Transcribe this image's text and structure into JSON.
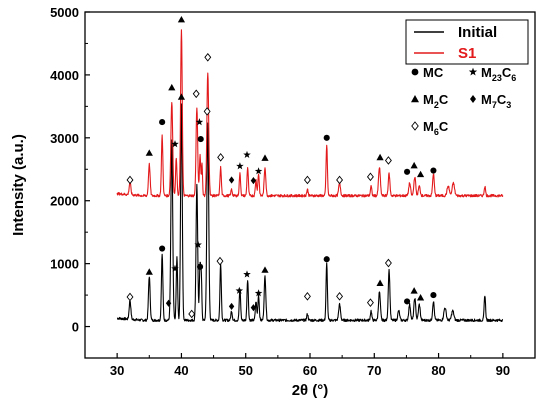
{
  "chart_data": {
    "type": "line",
    "xlabel": "2θ (°)",
    "ylabel": "Intensity (a.u.)",
    "xlim": [
      25,
      95
    ],
    "ylim": [
      -500,
      5000
    ],
    "xticks": [
      30,
      40,
      50,
      60,
      70,
      80,
      90
    ],
    "yticks": [
      0,
      1000,
      2000,
      3000,
      4000,
      5000
    ],
    "legend_position": "top-right",
    "series": [
      {
        "name": "Initial",
        "color": "#000000",
        "baseline": 100,
        "peaks": [
          [
            32.0,
            300,
            0.18
          ],
          [
            35.0,
            700,
            0.18
          ],
          [
            37.0,
            1050,
            0.16
          ],
          [
            38.5,
            2850,
            0.2
          ],
          [
            39.3,
            1000,
            0.15
          ],
          [
            40.0,
            3450,
            0.18
          ],
          [
            42.4,
            2150,
            0.18
          ],
          [
            42.9,
            900,
            0.15
          ],
          [
            43.1,
            600,
            0.12
          ],
          [
            44.1,
            3150,
            0.2
          ],
          [
            46.1,
            900,
            0.15
          ],
          [
            47.8,
            150,
            0.15
          ],
          [
            49.1,
            500,
            0.15
          ],
          [
            50.3,
            650,
            0.15
          ],
          [
            51.6,
            300,
            0.15
          ],
          [
            52.0,
            400,
            0.15
          ],
          [
            53.0,
            700,
            0.18
          ],
          [
            59.6,
            100,
            0.15
          ],
          [
            62.6,
            900,
            0.15
          ],
          [
            64.6,
            250,
            0.2
          ],
          [
            69.5,
            150,
            0.15
          ],
          [
            70.8,
            450,
            0.2
          ],
          [
            72.3,
            800,
            0.18
          ],
          [
            73.8,
            150,
            0.2
          ],
          [
            75.5,
            250,
            0.2
          ],
          [
            76.3,
            350,
            0.2
          ],
          [
            77.0,
            250,
            0.2
          ],
          [
            79.2,
            300,
            0.18
          ],
          [
            81.0,
            200,
            0.25
          ],
          [
            82.2,
            150,
            0.25
          ],
          [
            87.2,
            400,
            0.15
          ]
        ]
      },
      {
        "name": "S1",
        "color": "#e31a1c",
        "baseline": 2080,
        "peaks": [
          [
            32.0,
            200,
            0.18
          ],
          [
            35.0,
            500,
            0.18
          ],
          [
            37.0,
            950,
            0.16
          ],
          [
            38.5,
            1500,
            0.2
          ],
          [
            39.2,
            600,
            0.15
          ],
          [
            40.0,
            2650,
            0.18
          ],
          [
            42.4,
            1400,
            0.18
          ],
          [
            42.9,
            650,
            0.15
          ],
          [
            43.2,
            500,
            0.12
          ],
          [
            44.1,
            1950,
            0.2
          ],
          [
            46.1,
            450,
            0.15
          ],
          [
            47.8,
            100,
            0.15
          ],
          [
            49.1,
            350,
            0.15
          ],
          [
            50.3,
            450,
            0.15
          ],
          [
            51.6,
            250,
            0.15
          ],
          [
            52.0,
            350,
            0.15
          ],
          [
            53.0,
            450,
            0.18
          ],
          [
            59.6,
            100,
            0.15
          ],
          [
            62.6,
            800,
            0.15
          ],
          [
            64.6,
            200,
            0.2
          ],
          [
            69.5,
            150,
            0.15
          ],
          [
            70.8,
            450,
            0.2
          ],
          [
            72.3,
            350,
            0.18
          ],
          [
            75.5,
            200,
            0.2
          ],
          [
            76.3,
            300,
            0.2
          ],
          [
            77.0,
            150,
            0.2
          ],
          [
            79.2,
            350,
            0.18
          ],
          [
            81.5,
            150,
            0.25
          ],
          [
            82.3,
            200,
            0.25
          ],
          [
            87.2,
            150,
            0.15
          ]
        ]
      }
    ],
    "phase_key": [
      {
        "symbol": "circle",
        "label": "MC",
        "sub": ""
      },
      {
        "symbol": "star",
        "label": "M",
        "sub": "23",
        "label2": "C",
        "sub2": "6"
      },
      {
        "symbol": "triangle",
        "label": "M",
        "sub": "2",
        "label2": "C",
        "sub2": ""
      },
      {
        "symbol": "diamond",
        "label": "M",
        "sub": "7",
        "label2": "C",
        "sub2": "3"
      },
      {
        "symbol": "open-diamond",
        "label": "M",
        "sub": "6",
        "label2": "C",
        "sub2": ""
      }
    ],
    "markers": [
      {
        "x": 32.0,
        "y": 470,
        "symbol": "open-diamond"
      },
      {
        "x": 35.0,
        "y": 870,
        "symbol": "triangle"
      },
      {
        "x": 37.0,
        "y": 1240,
        "symbol": "circle"
      },
      {
        "x": 38.0,
        "y": 370,
        "symbol": "diamond"
      },
      {
        "x": 39.0,
        "y": 920,
        "symbol": "star"
      },
      {
        "x": 40.0,
        "y": 3650,
        "symbol": "triangle"
      },
      {
        "x": 41.6,
        "y": 200,
        "symbol": "open-diamond"
      },
      {
        "x": 42.6,
        "y": 1300,
        "symbol": "star"
      },
      {
        "x": 42.9,
        "y": 950,
        "symbol": "circle"
      },
      {
        "x": 44.0,
        "y": 3420,
        "symbol": "open-diamond"
      },
      {
        "x": 46.0,
        "y": 1040,
        "symbol": "open-diamond"
      },
      {
        "x": 47.8,
        "y": 320,
        "symbol": "diamond"
      },
      {
        "x": 49.0,
        "y": 570,
        "symbol": "star"
      },
      {
        "x": 50.2,
        "y": 830,
        "symbol": "star"
      },
      {
        "x": 51.2,
        "y": 300,
        "symbol": "diamond"
      },
      {
        "x": 52.0,
        "y": 530,
        "symbol": "star"
      },
      {
        "x": 53.0,
        "y": 900,
        "symbol": "triangle"
      },
      {
        "x": 59.6,
        "y": 480,
        "symbol": "open-diamond"
      },
      {
        "x": 62.6,
        "y": 1070,
        "symbol": "circle"
      },
      {
        "x": 64.6,
        "y": 480,
        "symbol": "open-diamond"
      },
      {
        "x": 69.4,
        "y": 380,
        "symbol": "open-diamond"
      },
      {
        "x": 70.9,
        "y": 690,
        "symbol": "triangle"
      },
      {
        "x": 72.2,
        "y": 1010,
        "symbol": "open-diamond"
      },
      {
        "x": 75.1,
        "y": 400,
        "symbol": "circle"
      },
      {
        "x": 76.2,
        "y": 570,
        "symbol": "triangle"
      },
      {
        "x": 77.2,
        "y": 460,
        "symbol": "triangle"
      },
      {
        "x": 79.2,
        "y": 500,
        "symbol": "circle"
      },
      {
        "x": 32.0,
        "y": 2330,
        "symbol": "open-diamond"
      },
      {
        "x": 35.0,
        "y": 2760,
        "symbol": "triangle"
      },
      {
        "x": 37.0,
        "y": 3250,
        "symbol": "circle"
      },
      {
        "x": 38.5,
        "y": 3800,
        "symbol": "triangle"
      },
      {
        "x": 39.0,
        "y": 2900,
        "symbol": "star"
      },
      {
        "x": 40.0,
        "y": 4880,
        "symbol": "triangle"
      },
      {
        "x": 42.3,
        "y": 3700,
        "symbol": "open-diamond"
      },
      {
        "x": 42.8,
        "y": 3250,
        "symbol": "star"
      },
      {
        "x": 43.0,
        "y": 2980,
        "symbol": "circle"
      },
      {
        "x": 44.1,
        "y": 4280,
        "symbol": "open-diamond"
      },
      {
        "x": 46.1,
        "y": 2690,
        "symbol": "open-diamond"
      },
      {
        "x": 47.8,
        "y": 2330,
        "symbol": "diamond"
      },
      {
        "x": 49.1,
        "y": 2550,
        "symbol": "star"
      },
      {
        "x": 50.2,
        "y": 2730,
        "symbol": "star"
      },
      {
        "x": 51.2,
        "y": 2320,
        "symbol": "diamond"
      },
      {
        "x": 52.0,
        "y": 2470,
        "symbol": "star"
      },
      {
        "x": 53.0,
        "y": 2680,
        "symbol": "triangle"
      },
      {
        "x": 59.6,
        "y": 2330,
        "symbol": "open-diamond"
      },
      {
        "x": 62.6,
        "y": 3000,
        "symbol": "circle"
      },
      {
        "x": 64.6,
        "y": 2330,
        "symbol": "open-diamond"
      },
      {
        "x": 69.4,
        "y": 2380,
        "symbol": "open-diamond"
      },
      {
        "x": 70.9,
        "y": 2690,
        "symbol": "triangle"
      },
      {
        "x": 72.2,
        "y": 2640,
        "symbol": "open-diamond"
      },
      {
        "x": 75.1,
        "y": 2460,
        "symbol": "circle"
      },
      {
        "x": 76.2,
        "y": 2560,
        "symbol": "triangle"
      },
      {
        "x": 77.2,
        "y": 2420,
        "symbol": "triangle"
      },
      {
        "x": 79.2,
        "y": 2480,
        "symbol": "circle"
      }
    ]
  }
}
